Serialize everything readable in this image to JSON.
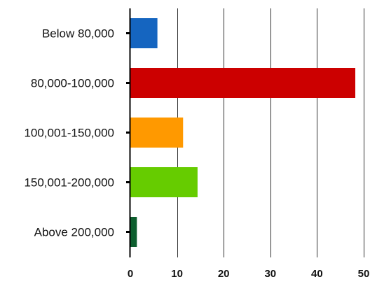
{
  "chart_data": {
    "type": "bar",
    "orientation": "horizontal",
    "categories": [
      "Below 80,000",
      "80,000-100,000",
      "100,001-150,000",
      "150,001-200,000",
      "Above 200,000"
    ],
    "values": [
      5.8,
      48.2,
      11.3,
      14.4,
      1.4
    ],
    "colors": [
      "#1565c0",
      "#cc0000",
      "#ff9900",
      "#66cc00",
      "#0d5e2e"
    ],
    "xlim": [
      0,
      50
    ],
    "xticks": [
      0,
      10,
      20,
      30,
      40,
      50
    ],
    "xtick_labels": [
      "0",
      "10",
      "20",
      "30",
      "40",
      "50"
    ],
    "grid": "vertical",
    "title": "",
    "xlabel": "",
    "ylabel": ""
  }
}
